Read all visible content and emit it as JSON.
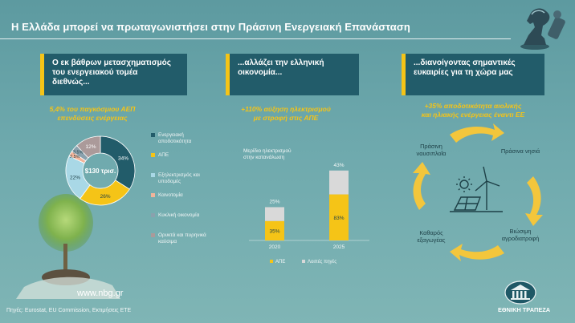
{
  "slide": {
    "title": "Η Ελλάδα μπορεί να πρωταγωνιστήσει στην Πράσινη Ενεργειακή Επανάσταση",
    "website": "www.nbg.gr",
    "footnote": "Πηγές: Eurostat, EU Commission, Εκτιμήσεις ΕΤΕ",
    "bank_name": "ΕΘΝΙΚΗ ΤΡΑΠΕΖΑ"
  },
  "colors": {
    "accent": "#f5c417",
    "dark_teal": "#225c6a",
    "light_blue": "#a9d8e6",
    "grey": "#c9c9c9"
  },
  "panel1": {
    "header": [
      "Ο εκ βάθρων μετασχηματισμός",
      "του ενεργειακού τομέα",
      "διεθνώς..."
    ],
    "subtitle": [
      "5,4% του παγκόσμιου ΑΕΠ",
      "επενδύσεις ενέργειας"
    ],
    "center_label": "$130 τρισ."
  },
  "panel2": {
    "header": [
      "...αλλάζει την ελληνική",
      "οικονομία..."
    ],
    "subtitle": [
      "+110% αύξηση ηλεκτρισμού",
      "με στροφή στις ΑΠΕ"
    ],
    "chart_title": [
      "Μερίδιο ηλεκτρισμού",
      "στην κατανάλωση"
    ]
  },
  "panel3": {
    "header": [
      "...διανοίγοντας σημαντικές",
      "ευκαιρίες για τη χώρα μας"
    ],
    "subtitle": [
      "+35% αποδοτικότητα αιολικής",
      "και ηλιακής ενέργειας έναντι ΕΕ"
    ],
    "cycle": [
      {
        "lines": [
          "Πράσινη",
          "ναυσιπλοΐα"
        ]
      },
      {
        "lines": [
          "Πράσινα νησιά"
        ]
      },
      {
        "lines": [
          "Βιώσιμη",
          "αγροδιατροφή"
        ]
      },
      {
        "lines": [
          "Καθαρός",
          "εξαγωγέας"
        ]
      }
    ]
  },
  "chart_data": [
    {
      "type": "pie",
      "title": "",
      "labels": [
        "Ενεργειακή αποδοτικότητα",
        "ΑΠΕ",
        "Εξηλεκτρισμός και υποδομές",
        "Καινοτομία",
        "Κυκλική οικονομία",
        "Ορυκτά και πυρηνικά καύσιμα"
      ],
      "legend_lines": [
        [
          "Ενεργειακή",
          "αποδοτικότητα"
        ],
        [
          "ΑΠΕ"
        ],
        [
          "Εξηλεκτρισμός και",
          "υποδομές"
        ],
        [
          "Καινοτομία"
        ],
        [
          "Κυκλική οικονομία"
        ],
        [
          "Ορυκτά και πυρηνικά",
          "καύσιμα"
        ]
      ],
      "values": [
        34,
        26,
        22,
        2.5,
        3.5,
        12
      ],
      "value_labels": [
        "34%",
        "26%",
        "22%",
        "2,5%",
        "3,5%",
        "12%"
      ],
      "colors": [
        "#225c6a",
        "#f5c417",
        "#a9d8e6",
        "#f2b49a",
        "#8aa1ad",
        "#ab9a9a"
      ],
      "legend_position": "right"
    },
    {
      "type": "bar",
      "stacked": true,
      "categories": [
        "2020",
        "2025"
      ],
      "series": [
        {
          "name": "ΑΠΕ",
          "values": [
            35,
            83
          ],
          "labels": [
            "35%",
            "83%"
          ],
          "color": "#f5c417"
        },
        {
          "name": "Λοιπές πηγές",
          "values": [
            25,
            43
          ],
          "labels": [
            "25%",
            "43%"
          ],
          "color": "#d9d9d9"
        }
      ],
      "ylim": [
        0,
        130
      ],
      "legend_position": "bottom"
    }
  ]
}
